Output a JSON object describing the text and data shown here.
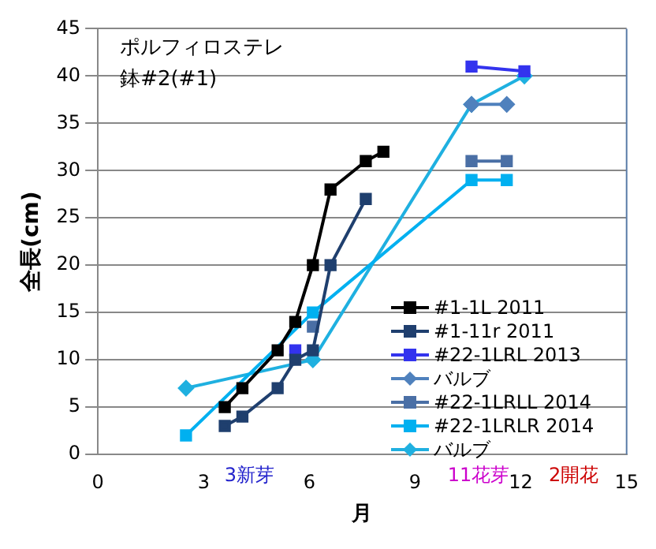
{
  "chart_data": {
    "type": "line",
    "title": "ポルフィロステレ",
    "subtitle": "鉢#2(#1)",
    "xlabel": "月",
    "ylabel": "全長(cm)",
    "xlim": [
      0,
      15
    ],
    "xticks": [
      0,
      3,
      6,
      9,
      12,
      15
    ],
    "ylim": [
      0,
      45
    ],
    "yticks": [
      0,
      5,
      10,
      15,
      20,
      25,
      30,
      35,
      40,
      45
    ],
    "grid": "y",
    "legend": "right",
    "annotations": [
      "3新芽",
      "11花芽",
      "2開花"
    ],
    "series": [
      {
        "name": "#1-1L 2011",
        "color": "#000000",
        "marker": "square",
        "x": [
          3.6,
          4.1,
          5.1,
          5.6,
          6.1,
          6.6,
          7.6,
          8.1
        ],
        "values": [
          5,
          7,
          11,
          14,
          20,
          28,
          31,
          32
        ]
      },
      {
        "name": "#1-11r 2011",
        "color": "#1f3f6e",
        "marker": "square",
        "x": [
          3.6,
          4.1,
          5.1,
          5.6,
          6.1,
          6.6,
          7.6
        ],
        "values": [
          3,
          4,
          7,
          10,
          11,
          20,
          27
        ]
      },
      {
        "name": "#22-1LRL 2013",
        "color": "#3333ee",
        "marker": "square",
        "x": [
          5.6,
          8,
          10.6,
          12.1
        ],
        "values": [
          11,
          null,
          41,
          40.5
        ]
      },
      {
        "name": "バルブ",
        "color": "#4f81bd",
        "marker": "diamond",
        "x": [
          10.6,
          11.6
        ],
        "values": [
          37,
          37
        ]
      },
      {
        "name": "#22-1LRLL 2014",
        "color": "#4a6fa5",
        "marker": "square",
        "x": [
          6.1,
          8,
          10.6,
          11.6
        ],
        "values": [
          13.5,
          null,
          31,
          31
        ]
      },
      {
        "name": "#22-1LRLR 2014",
        "color": "#00b0f0",
        "marker": "square",
        "x": [
          2.5,
          6.1,
          10.6,
          11.6
        ],
        "values": [
          2,
          15,
          29,
          29
        ]
      },
      {
        "name": "バルブ",
        "color": "#1fb0e0",
        "marker": "diamond",
        "x": [
          2.5,
          6.1,
          10.6,
          12.1
        ],
        "values": [
          7,
          10,
          37,
          40
        ]
      }
    ]
  }
}
